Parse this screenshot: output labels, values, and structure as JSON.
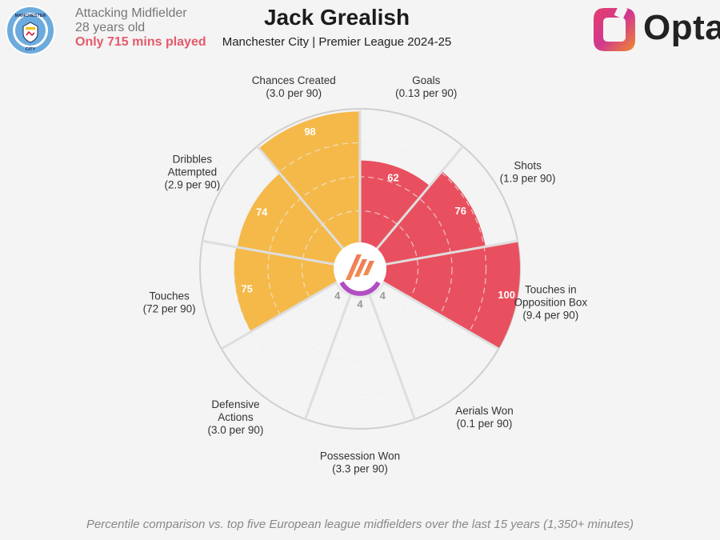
{
  "header": {
    "position": "Attacking Midfielder",
    "age": "28 years old",
    "minutes_note": "Only 715 mins played",
    "title": "Jack Grealish",
    "subtitle": "Manchester City | Premier League 2024-25",
    "opta_word": "Opta"
  },
  "club_crest": {
    "top_text": "MANCHESTER",
    "bottom_text": "CITY"
  },
  "footnote": "Percentile comparison vs. top five European league midfielders over the last 15 years (1,350+ minutes)",
  "colors": {
    "attacking": "#e9505f",
    "creative": "#f5b94a",
    "defensive": "#e8e8e8",
    "center_ring": "#b04ec2"
  },
  "chart_data": {
    "type": "pie",
    "subtype": "polar-percentile",
    "title": "Jack Grealish",
    "rlim": [
      0,
      100
    ],
    "gridlines": [
      25,
      50,
      75
    ],
    "metrics": [
      {
        "name": "Goals",
        "label_lines": [
          "Goals",
          "(0.13 per 90)"
        ],
        "per90": "0.13 per 90",
        "percentile": 62,
        "group": "attacking"
      },
      {
        "name": "Shots",
        "label_lines": [
          "Shots",
          "(1.9 per 90)"
        ],
        "per90": "1.9 per 90",
        "percentile": 76,
        "group": "attacking"
      },
      {
        "name": "Touches in Opposition Box",
        "label_lines": [
          "Touches in",
          "Opposition Box",
          "(9.4 per 90)"
        ],
        "per90": "9.4 per 90",
        "percentile": 100,
        "group": "attacking"
      },
      {
        "name": "Aerials Won",
        "label_lines": [
          "Aerials Won",
          "(0.1 per 90)"
        ],
        "per90": "0.1 per 90",
        "percentile": 4,
        "group": "defensive"
      },
      {
        "name": "Possession Won",
        "label_lines": [
          "Possession Won",
          "(3.3 per 90)"
        ],
        "per90": "3.3 per 90",
        "percentile": 4,
        "group": "defensive"
      },
      {
        "name": "Defensive Actions",
        "label_lines": [
          "Defensive",
          "Actions",
          "(3.0 per 90)"
        ],
        "per90": "3.0 per 90",
        "percentile": 4,
        "group": "defensive"
      },
      {
        "name": "Touches",
        "label_lines": [
          "Touches",
          "(72 per 90)"
        ],
        "per90": "72 per 90",
        "percentile": 75,
        "group": "creative"
      },
      {
        "name": "Dribbles Attempted",
        "label_lines": [
          "Dribbles",
          "Attempted",
          "(2.9 per 90)"
        ],
        "per90": "2.9 per 90",
        "percentile": 74,
        "group": "creative"
      },
      {
        "name": "Chances Created",
        "label_lines": [
          "Chances Created",
          "(3.0 per 90)"
        ],
        "per90": "3.0 per 90",
        "percentile": 98,
        "group": "creative"
      }
    ]
  }
}
